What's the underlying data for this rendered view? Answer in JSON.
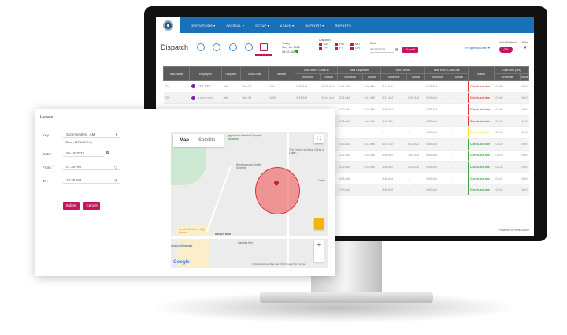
{
  "nav": {
    "items": [
      "OPERATIONS ▾",
      "PAYROLL ▾",
      "SETUP ▾",
      "ADMIN ▾",
      "SUPPORT ▾",
      "REPORTS"
    ]
  },
  "header": {
    "title": "Dispatch",
    "today_label": "Today",
    "today_date": "May 18, 2022",
    "today_time": "08:45 AM",
    "dispatch_label": "Dispatch",
    "dispatch_options": [
      "AM",
      "PM",
      "MD",
      "PF",
      "FT",
      "OH"
    ],
    "date_label": "Date",
    "date_value": "05/18/2022",
    "submit": "Submit",
    "frequently_used": "Frequently Used ▾",
    "auto_refresh_label": "Auto Refresh",
    "auto_refresh_value": "ON",
    "filter_label": "Filter"
  },
  "colors": {
    "nav": "#1870b8",
    "accent": "#c2185b",
    "red": "#e53935",
    "yellow": "#fdd835",
    "green": "#43a047"
  },
  "table": {
    "groups": [
      "Task Name",
      "Employee",
      "Dispatch",
      "Task Code",
      "Vehicle",
      "Task Start / Clock-in",
      "Yard Departure",
      "Yard Return",
      "Task End / Clock-out",
      "Status",
      "Total time (hrs)"
    ],
    "sub": [
      "Schedule",
      "Actual"
    ],
    "rows": [
      {
        "c": [
          "001",
          "1002 1002",
          "AM",
          "Gen 02",
          "100",
          "5:35 AM",
          "05:35 AM",
          "6:13 AM",
          "5:56 AM",
          "6:11 AM",
          "-",
          "6:25 AM",
          "-",
          "Check-out due",
          "02:50",
          "00:0"
        ],
        "s": "red"
      },
      {
        "c": [
          "070",
          "G1002 1002",
          "AM",
          "Gen 02",
          "1002",
          "5:45 AM",
          "05:41 AM",
          "6:22 AM",
          "6:14 AM",
          "6:21 AM",
          "6:15 AM",
          "6:25 AM",
          "-",
          "Check-out due",
          "02:40",
          "00:0"
        ],
        "s": "red"
      },
      {
        "c": [
          "",
          "",
          "",
          "",
          "",
          "",
          "",
          "6:20 AM",
          "6:23 AM",
          "6:30 AM",
          "-",
          "6:35 AM",
          "-",
          "Check-out due",
          "02:40",
          "00:0"
        ],
        "s": "red"
      },
      {
        "c": [
          "",
          "",
          "",
          "",
          "",
          "",
          "",
          "6:06 AM",
          "6:41 AM",
          "6:11 AM",
          "-",
          "6:25 AM",
          "-",
          "Check-out due",
          "02:15",
          "00:0"
        ],
        "s": "red"
      },
      {
        "c": [
          "",
          "",
          "",
          "",
          "",
          "",
          "",
          "-",
          "-",
          "-",
          "-",
          "6:40 AM",
          "-",
          "Check-out due",
          "02:40",
          "00:0"
        ],
        "s": "yellow"
      },
      {
        "c": [
          "",
          "",
          "",
          "",
          "",
          "",
          "",
          "6:25 AM",
          "6:14 AM",
          "6:41 AM",
          "6:28 AM",
          "6:55 AM",
          "-",
          "Check-out due",
          "03:25",
          "00:0"
        ],
        "s": "green"
      },
      {
        "c": [
          "",
          "",
          "",
          "",
          "",
          "",
          "",
          "6:12 AM",
          "5:54 AM",
          "6:40 AM",
          "5:42 AM",
          "6:55 AM",
          "-",
          "Check-out due",
          "03:05",
          "00:0"
        ],
        "s": "green"
      },
      {
        "c": [
          "",
          "",
          "",
          "",
          "",
          "",
          "",
          "6:25 AM",
          "6:18 AM",
          "6:40 AM",
          "6:28 AM",
          "6:55 AM",
          "-",
          "Check-out due",
          "03:25",
          "00:0"
        ],
        "s": "green"
      },
      {
        "c": [
          "",
          "",
          "",
          "",
          "",
          "",
          "",
          "6:35 AM",
          "-",
          "6:40 AM",
          "-",
          "6:45 AM",
          "-",
          "Check-out due",
          "03:15",
          "00:0"
        ],
        "s": "green"
      },
      {
        "c": [
          "",
          "",
          "",
          "",
          "",
          "",
          "",
          "7:50 AM",
          "-",
          "8:40 AM",
          "-",
          "8:40 AM",
          "-",
          "Check-out due",
          "03:15",
          "00:0"
        ],
        "s": "green"
      }
    ]
  },
  "footer": "Powered by ByteSource",
  "locate": {
    "title": "Locate",
    "key_label": "Key :",
    "key_value": "SummerWest_AM",
    "runs": "(Runs: MTWRFSU)",
    "date_label": "Date :",
    "date_value": "05-18-2022",
    "from_label": "From :",
    "from_value": "07:30 AM",
    "to_label": "To :",
    "to_value": "10:30 AM",
    "submit": "Submit",
    "cancel": "Cancel",
    "map": {
      "tab_map": "Map",
      "tab_satellite": "Satellite",
      "places": [
        "gig harbor baseball & sports academy",
        "The Church of Jesus Christ of Latter...",
        "Windowguard Mobile Screens",
        "Crumbl Cookies - Gig Harbor",
        "Costco Wholesale",
        "Harold's Key",
        "Borgen Blvd",
        "Cresc"
      ],
      "attribution": "Keyboard shortcuts   Map data ©2022 Google   Terms of Use",
      "logo": "Google"
    }
  }
}
